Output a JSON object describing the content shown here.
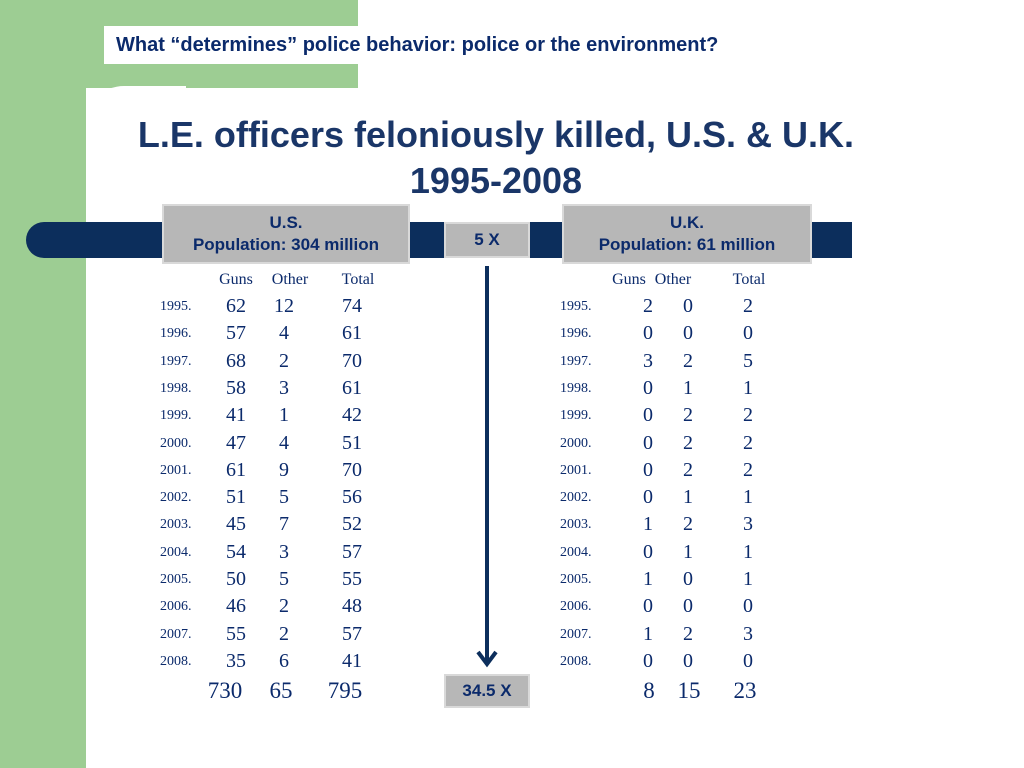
{
  "topic": "What “determines” police behavior: police or the environment?",
  "title": {
    "line1": "L.E. officers feloniously killed, U.S. & U.K.",
    "line2": "1995-2008"
  },
  "us": {
    "country": "U.S.",
    "population": "Population:  304 million",
    "headers": [
      "Guns",
      "Other",
      "Total"
    ],
    "rows": [
      {
        "year": "1995.",
        "guns": "62",
        "other": "12",
        "total": "74"
      },
      {
        "year": "1996.",
        "guns": "57",
        "other": "4",
        "total": "61"
      },
      {
        "year": "1997.",
        "guns": "68",
        "other": "2",
        "total": "70"
      },
      {
        "year": "1998.",
        "guns": "58",
        "other": "3",
        "total": "61"
      },
      {
        "year": "1999.",
        "guns": "41",
        "other": "1",
        "total": "42"
      },
      {
        "year": "2000.",
        "guns": "47",
        "other": "4",
        "total": "51"
      },
      {
        "year": "2001.",
        "guns": "61",
        "other": "9",
        "total": "70"
      },
      {
        "year": "2002.",
        "guns": "51",
        "other": "5",
        "total": "56"
      },
      {
        "year": "2003.",
        "guns": "45",
        "other": "7",
        "total": "52"
      },
      {
        "year": "2004.",
        "guns": "54",
        "other": "3",
        "total": "57"
      },
      {
        "year": "2005.",
        "guns": "50",
        "other": "5",
        "total": "55"
      },
      {
        "year": "2006.",
        "guns": "46",
        "other": "2",
        "total": "48"
      },
      {
        "year": "2007.",
        "guns": "55",
        "other": "2",
        "total": "57"
      },
      {
        "year": "2008.",
        "guns": "35",
        "other": "6",
        "total": "41"
      }
    ],
    "totals": {
      "guns": "730",
      "other": "65",
      "total": "795"
    }
  },
  "uk": {
    "country": "U.K.",
    "population": "Population:  61 million",
    "headers": [
      "Guns",
      "Other",
      "Total"
    ],
    "rows": [
      {
        "year": "1995.",
        "guns": "2",
        "other": "0",
        "total": "2"
      },
      {
        "year": "1996.",
        "guns": "0",
        "other": "0",
        "total": "0"
      },
      {
        "year": "1997.",
        "guns": "3",
        "other": "2",
        "total": "5"
      },
      {
        "year": "1998.",
        "guns": "0",
        "other": "1",
        "total": "1"
      },
      {
        "year": "1999.",
        "guns": "0",
        "other": "2",
        "total": "2"
      },
      {
        "year": "2000.",
        "guns": "0",
        "other": "2",
        "total": "2"
      },
      {
        "year": "2001.",
        "guns": "0",
        "other": "2",
        "total": "2"
      },
      {
        "year": "2002.",
        "guns": "0",
        "other": "1",
        "total": "1"
      },
      {
        "year": "2003.",
        "guns": "1",
        "other": "2",
        "total": "3"
      },
      {
        "year": "2004.",
        "guns": "0",
        "other": "1",
        "total": "1"
      },
      {
        "year": "2005.",
        "guns": "1",
        "other": "0",
        "total": "1"
      },
      {
        "year": "2006.",
        "guns": "0",
        "other": "0",
        "total": "0"
      },
      {
        "year": "2007.",
        "guns": "1",
        "other": "2",
        "total": "3"
      },
      {
        "year": "2008.",
        "guns": "0",
        "other": "0",
        "total": "0"
      }
    ],
    "totals": {
      "guns": "8",
      "other": "15",
      "total": "23"
    }
  },
  "ratios": {
    "population": "5 X",
    "deaths": "34.5 X"
  },
  "colors": {
    "accent_green": "#9dcd93",
    "navy_bar": "#0c2e5c",
    "text_navy": "#0b2a6b",
    "box_gray": "#b7b7b7"
  }
}
